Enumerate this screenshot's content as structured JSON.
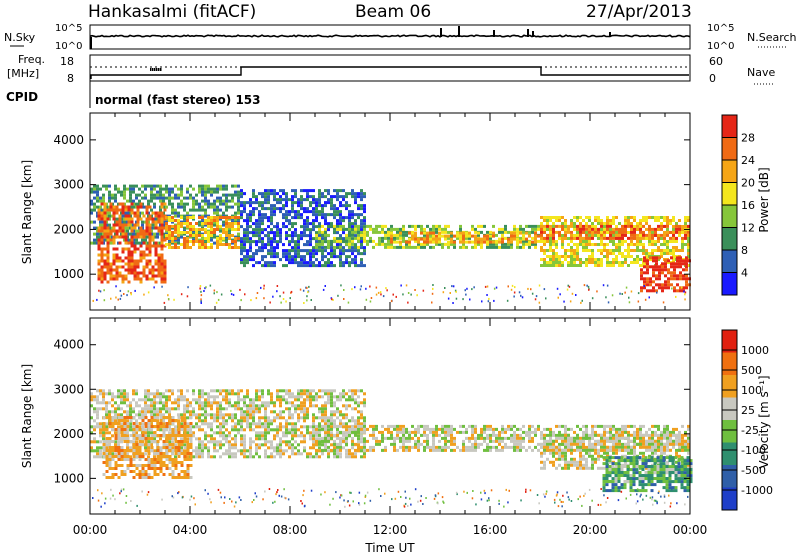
{
  "header": {
    "title": "Hankasalmi (fitACF)",
    "beam": "Beam 06",
    "date": "27/Apr/2013"
  },
  "noise_panel": {
    "left_label": "N.Sky",
    "right_label": "N.Search",
    "left_ticks": [
      "10^5",
      "10^0"
    ],
    "right_ticks": [
      "10^5",
      "10^0"
    ]
  },
  "freq_panel": {
    "left_label_1": "Freq.",
    "left_label_2": "[MHz]",
    "right_label": "Nave",
    "left_ticks": [
      "18",
      "8"
    ],
    "right_ticks": [
      "60",
      "0"
    ]
  },
  "cpid": {
    "label": "CPID",
    "text": "normal (fast stereo) 153"
  },
  "x_axis": {
    "ticks": [
      "00:00",
      "04:00",
      "08:00",
      "12:00",
      "16:00",
      "20:00",
      "00:00"
    ],
    "title": "Time UT",
    "range_hours": [
      0,
      24
    ]
  },
  "chart_data": [
    {
      "type": "heatmap",
      "title": "",
      "xlabel": "Time UT",
      "ylabel": "Slant Range [km]",
      "xlim": [
        0,
        24
      ],
      "ylim": [
        200,
        4600
      ],
      "yticks": [
        "1000",
        "2000",
        "3000",
        "4000"
      ],
      "ytick_values": [
        1000,
        2000,
        3000,
        4000
      ],
      "colorbar": {
        "label": "Power [dB]",
        "ticks": [
          "4",
          "8",
          "12",
          "16",
          "20",
          "24",
          "28"
        ],
        "colors": [
          "#1a1aff",
          "#2e5fb5",
          "#3a8f5a",
          "#86c63a",
          "#f4e61e",
          "#f5a516",
          "#f06a14",
          "#e52617"
        ]
      },
      "bands": [
        {
          "t0": 0.0,
          "t1": 6.0,
          "r0": 1700,
          "r1": 3000,
          "level": 2
        },
        {
          "t0": 0.3,
          "t1": 3.0,
          "r0": 800,
          "r1": 2600,
          "level": 6
        },
        {
          "t0": 3.0,
          "t1": 6.0,
          "r0": 1600,
          "r1": 2300,
          "level": 5
        },
        {
          "t0": 6.0,
          "t1": 11.0,
          "r0": 1200,
          "r1": 2900,
          "level": 1
        },
        {
          "t0": 9.0,
          "t1": 18.0,
          "r0": 1600,
          "r1": 2100,
          "level": 3
        },
        {
          "t0": 12.0,
          "t1": 18.0,
          "r0": 1700,
          "r1": 1950,
          "level": 5
        },
        {
          "t0": 18.0,
          "t1": 24.0,
          "r0": 1200,
          "r1": 2300,
          "level": 4
        },
        {
          "t0": 18.0,
          "t1": 24.0,
          "r0": 1800,
          "r1": 2100,
          "level": 6
        },
        {
          "t0": 22.0,
          "t1": 24.0,
          "r0": 600,
          "r1": 1400,
          "level": 7
        }
      ]
    },
    {
      "type": "heatmap",
      "title": "",
      "xlabel": "Time UT",
      "ylabel": "Slant Range [km]",
      "xlim": [
        0,
        24
      ],
      "ylim": [
        200,
        4600
      ],
      "yticks": [
        "1000",
        "2000",
        "3000",
        "4000"
      ],
      "ytick_values": [
        1000,
        2000,
        3000,
        4000
      ],
      "colorbar": {
        "label": "Velocity [m s⁻¹]",
        "ticks": [
          "1000",
          "500",
          "100",
          "25",
          "-25",
          "-100",
          "-500",
          "-1000"
        ],
        "colors": [
          "#1f3fc9",
          "#2f5fa8",
          "#2f8f6f",
          "#6fbf3f",
          "#c8c8c0",
          "#f0a020",
          "#f07010",
          "#e02010"
        ]
      },
      "bands": [
        {
          "t0": 0.0,
          "t1": 6.0,
          "r0": 1500,
          "r1": 3000,
          "level": 4
        },
        {
          "t0": 0.5,
          "t1": 4.0,
          "r0": 1000,
          "r1": 2400,
          "level": 5
        },
        {
          "t0": 6.0,
          "t1": 11.0,
          "r0": 1500,
          "r1": 3000,
          "level": 4
        },
        {
          "t0": 9.0,
          "t1": 24.0,
          "r0": 1600,
          "r1": 2200,
          "level": 4
        },
        {
          "t0": 18.0,
          "t1": 24.0,
          "r0": 1200,
          "r1": 2000,
          "level": 4
        },
        {
          "t0": 20.5,
          "t1": 24.0,
          "r0": 700,
          "r1": 1500,
          "level": 2
        },
        {
          "t0": 20.5,
          "t1": 24.0,
          "r0": 900,
          "r1": 1300,
          "level": 3
        }
      ]
    }
  ]
}
